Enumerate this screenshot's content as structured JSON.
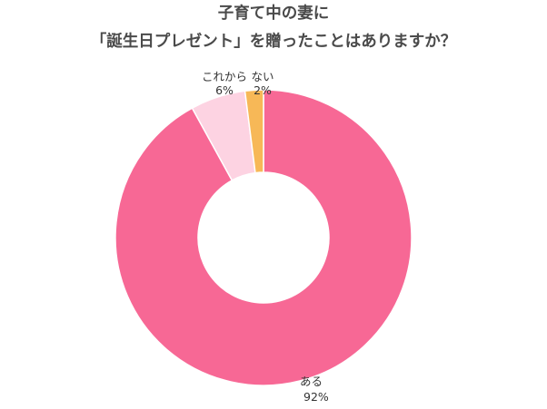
{
  "title_line1": "子育て中の妻に",
  "title_line2": "「誕生日プレゼント」を贈ったことはありますか？",
  "chart_data": {
    "type": "pie",
    "donut": true,
    "title": "子育て中の妻に「誕生日プレゼント」を贈ったことはありますか？",
    "start": "top",
    "direction": "clockwise",
    "slices": [
      {
        "label": "ある",
        "value": 92,
        "value_label": "92%",
        "color": "#f76895"
      },
      {
        "label": "これから",
        "value": 6,
        "value_label": "6%",
        "color": "#fdd3e2"
      },
      {
        "label": "ない",
        "value": 2,
        "value_label": "2%",
        "color": "#f7b857"
      }
    ]
  }
}
